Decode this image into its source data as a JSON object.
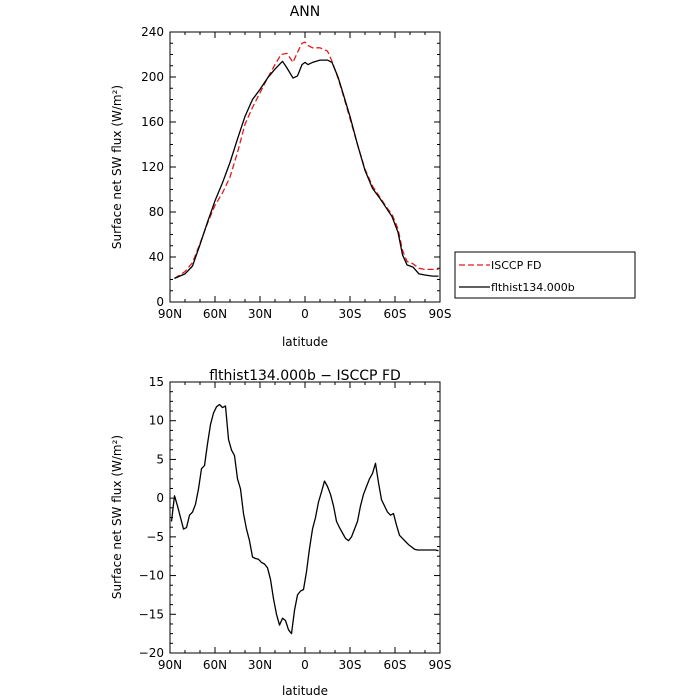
{
  "chart_data": [
    {
      "type": "line",
      "title": "ANN",
      "xlabel": "latitude",
      "ylabel": "Surface net SW flux (W/m²)",
      "xlim": [
        90,
        -90
      ],
      "ylim": [
        0,
        240
      ],
      "x_ticks": [
        90,
        60,
        30,
        0,
        -30,
        -60,
        -90
      ],
      "x_tick_labels": [
        "90N",
        "60N",
        "30N",
        "0",
        "30S",
        "60S",
        "90S"
      ],
      "y_ticks": [
        0,
        40,
        80,
        120,
        160,
        200,
        240
      ],
      "y_tick_labels": [
        "0",
        "40",
        "80",
        "120",
        "160",
        "200",
        "240"
      ],
      "legend_position": "right",
      "series": [
        {
          "name": "ISCCP FD",
          "color": "#e41a1c",
          "dash": "dashed",
          "x": [
            87,
            80,
            75,
            70,
            65,
            60,
            55,
            50,
            45,
            40,
            35,
            30,
            25,
            20,
            16,
            12,
            8,
            5,
            2,
            0,
            -2,
            -5,
            -10,
            -15,
            -18,
            -22,
            -25,
            -30,
            -35,
            -40,
            -45,
            -50,
            -55,
            -58,
            -62,
            -65,
            -68,
            -72,
            -76,
            -80,
            -85,
            -89
          ],
          "y": [
            21,
            27,
            35,
            52,
            70,
            86,
            97,
            111,
            133,
            158,
            173,
            186,
            199,
            211,
            220,
            221,
            213,
            222,
            230,
            231,
            228,
            226,
            226,
            223,
            214,
            199,
            186,
            163,
            140,
            118,
            103,
            93,
            83,
            78,
            65,
            46,
            36,
            34,
            30,
            29,
            29,
            29
          ]
        },
        {
          "name": "flthist134.000b",
          "color": "#000000",
          "dash": "solid",
          "x": [
            87,
            80,
            75,
            70,
            65,
            60,
            55,
            50,
            45,
            40,
            35,
            30,
            25,
            20,
            15,
            12,
            8,
            5,
            2,
            0,
            -2,
            -5,
            -10,
            -15,
            -18,
            -22,
            -25,
            -30,
            -35,
            -40,
            -45,
            -50,
            -55,
            -58,
            -62,
            -65,
            -68,
            -72,
            -76,
            -80,
            -85,
            -89
          ],
          "y": [
            21,
            25,
            32,
            51,
            71,
            90,
            106,
            124,
            145,
            165,
            180,
            189,
            199,
            207,
            214,
            208,
            199,
            201,
            211,
            213,
            211,
            213,
            215,
            215,
            213,
            200,
            187,
            165,
            140,
            117,
            101,
            92,
            82,
            76,
            62,
            42,
            33,
            31,
            25,
            24,
            23,
            23
          ]
        }
      ]
    },
    {
      "type": "line",
      "title": "flthist134.000b − ISCCP FD",
      "xlabel": "latitude",
      "ylabel": "Surface net SW flux (W/m²)",
      "xlim": [
        90,
        -90
      ],
      "ylim": [
        -20,
        15
      ],
      "x_ticks": [
        90,
        60,
        30,
        0,
        -30,
        -60,
        -90
      ],
      "x_tick_labels": [
        "90N",
        "60N",
        "30N",
        "0",
        "30S",
        "60S",
        "90S"
      ],
      "y_ticks": [
        -20,
        -15,
        -10,
        -5,
        0,
        5,
        10,
        15
      ],
      "y_tick_labels": [
        "−20",
        "−15",
        "−10",
        "−5",
        "0",
        "5",
        "10",
        "15"
      ],
      "series": [
        {
          "color": "#000000",
          "dash": "solid",
          "x": [
            89,
            87,
            85,
            83,
            81,
            79,
            77,
            75,
            73,
            71,
            69,
            67,
            65,
            63,
            61,
            59,
            57,
            55,
            53,
            51,
            49,
            47,
            45,
            43,
            41,
            39,
            37,
            35,
            33,
            31,
            29,
            27,
            25,
            23,
            21,
            19,
            17,
            15,
            13,
            11,
            9,
            7,
            5,
            3,
            1,
            -1,
            -3,
            -5,
            -7,
            -9,
            -11,
            -13,
            -15,
            -17,
            -19,
            -21,
            -23,
            -25,
            -27,
            -29,
            -31,
            -33,
            -35,
            -37,
            -39,
            -41,
            -43,
            -45,
            -47,
            -49,
            -51,
            -53,
            -55,
            -57,
            -59,
            -61,
            -63,
            -65,
            -67,
            -69,
            -71,
            -73,
            -75,
            -77,
            -79,
            -81,
            -83,
            -85,
            -87,
            -89
          ],
          "y": [
            -3.0,
            0.3,
            -1.0,
            -2.5,
            -4.0,
            -3.8,
            -2.2,
            -1.8,
            -0.8,
            1.2,
            3.8,
            4.2,
            7.0,
            9.5,
            11.0,
            11.8,
            12.1,
            11.7,
            11.9,
            7.6,
            6.2,
            5.5,
            2.5,
            1.2,
            -2.0,
            -4.0,
            -5.5,
            -7.6,
            -7.8,
            -7.9,
            -8.3,
            -8.5,
            -9.0,
            -10.5,
            -13.0,
            -15.0,
            -16.4,
            -15.5,
            -15.8,
            -17.0,
            -17.5,
            -14.5,
            -12.5,
            -12.0,
            -11.8,
            -9.5,
            -6.5,
            -4.0,
            -2.5,
            -0.5,
            0.8,
            2.2,
            1.5,
            0.5,
            -1.0,
            -3.0,
            -3.8,
            -4.5,
            -5.2,
            -5.5,
            -5.0,
            -4.0,
            -3.0,
            -1.0,
            0.5,
            1.5,
            2.5,
            3.2,
            4.5,
            2.0,
            -0.2,
            -1.0,
            -1.8,
            -2.2,
            -2.0,
            -3.5,
            -4.8,
            -5.2,
            -5.6,
            -6.0,
            -6.3,
            -6.6,
            -6.7,
            -6.7,
            -6.7,
            -6.7,
            -6.7,
            -6.7,
            -6.7,
            -6.8
          ]
        }
      ]
    }
  ]
}
